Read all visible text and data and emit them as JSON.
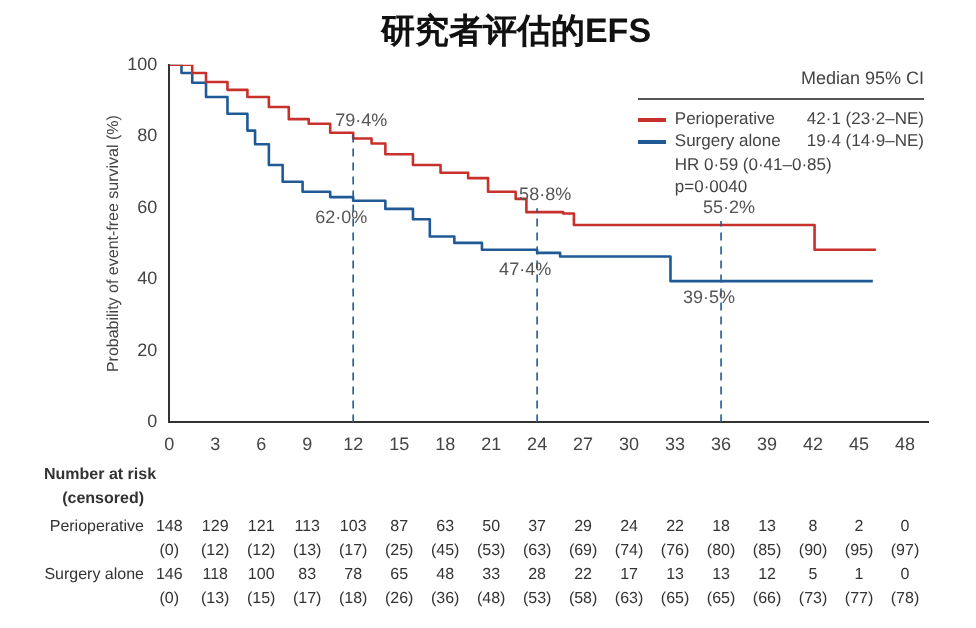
{
  "chart_data": {
    "type": "step",
    "title": "研究者评估的EFS",
    "ylabel": "Probability of event-free survival (%)",
    "legend_title": "Median 95% CI",
    "legend": "top right",
    "grid": false,
    "marker": "none",
    "line_style": "solid",
    "xlim": [
      0,
      49.5
    ],
    "xticks": [
      0,
      3,
      6,
      9,
      12,
      15,
      18,
      21,
      24,
      27,
      30,
      33,
      36,
      39,
      42,
      45,
      48
    ],
    "ylim": [
      0,
      100
    ],
    "yticks": [
      0,
      20,
      40,
      60,
      80,
      100
    ],
    "series": [
      {
        "name": "Perioperative",
        "color": "#c8302b",
        "x": [
          0,
          0.8,
          1.5,
          2.4,
          3.8,
          5.1,
          6.5,
          7.8,
          9.1,
          10.5,
          12,
          13.2,
          14.1,
          15.9,
          17.7,
          19.5,
          20.8,
          22.6,
          23.3,
          25.7,
          26.4,
          42.1,
          46.1
        ],
        "values": [
          100,
          100,
          97.7,
          95.2,
          93,
          91,
          88.2,
          84.8,
          83.5,
          81,
          79.4,
          78,
          75,
          72,
          69.8,
          68.3,
          64.5,
          62.5,
          58.8,
          58.4,
          55.2,
          48.3,
          48.3
        ]
      },
      {
        "name": "Surgery alone",
        "color": "#1f5a96",
        "x": [
          0,
          0.8,
          1.5,
          2.4,
          3.8,
          5.1,
          5.6,
          6.5,
          7.4,
          8.7,
          10.5,
          12,
          14.1,
          15.9,
          17,
          18.6,
          20.4,
          24,
          25.5,
          32.7,
          45.9
        ],
        "values": [
          100,
          97.7,
          95,
          91,
          86.3,
          81.6,
          77.8,
          72,
          67.3,
          64.5,
          63,
          62,
          59.7,
          56.8,
          52,
          50.2,
          48.3,
          47.4,
          46.4,
          39.5,
          39.5
        ]
      }
    ],
    "ref_lines": [
      {
        "axis": "x",
        "value": 12,
        "line_style": "dashed",
        "color": "#1f5a96"
      },
      {
        "axis": "x",
        "value": 24,
        "line_style": "dashed",
        "color": "#1f5a96"
      },
      {
        "axis": "x",
        "value": 36,
        "line_style": "dashed",
        "color": "#1f5a96"
      }
    ],
    "annotations": [
      "42·1 (23·2–NE)",
      "19·4 (14·9–NE)",
      "HR 0·59 (0·41–0·85)",
      "p=0·0040",
      "Number at risk",
      "(censored)",
      "148 129 121 113 103 87 63 50 37 29 24 22 18 13 8 2 0",
      "(0) (12) (12) (13) (17) (25) (45) (53) (63) (69) (74) (76) (80) (85) (90) (95) (97)",
      "146 118 100 83 78 65 48 33 28 22 17 13 13 12 5 1 0",
      "(0) (13) (15) (17) (18) (26) (36) (48) (53) (58) (63) (65) (65) (66) (73) (77) (78)",
      {
        "text": "79·4%",
        "x": 12,
        "y": 79.4
      },
      {
        "text": "62·0%",
        "x": 12,
        "y": 62
      },
      {
        "text": "58·8%",
        "x": 24,
        "y": 58.8
      },
      {
        "text": "47·4%",
        "x": 24,
        "y": 47.4
      },
      {
        "text": "55·2%",
        "x": 36,
        "y": 55.2
      },
      {
        "text": "39·5%",
        "x": 36,
        "y": 39.5
      }
    ]
  }
}
